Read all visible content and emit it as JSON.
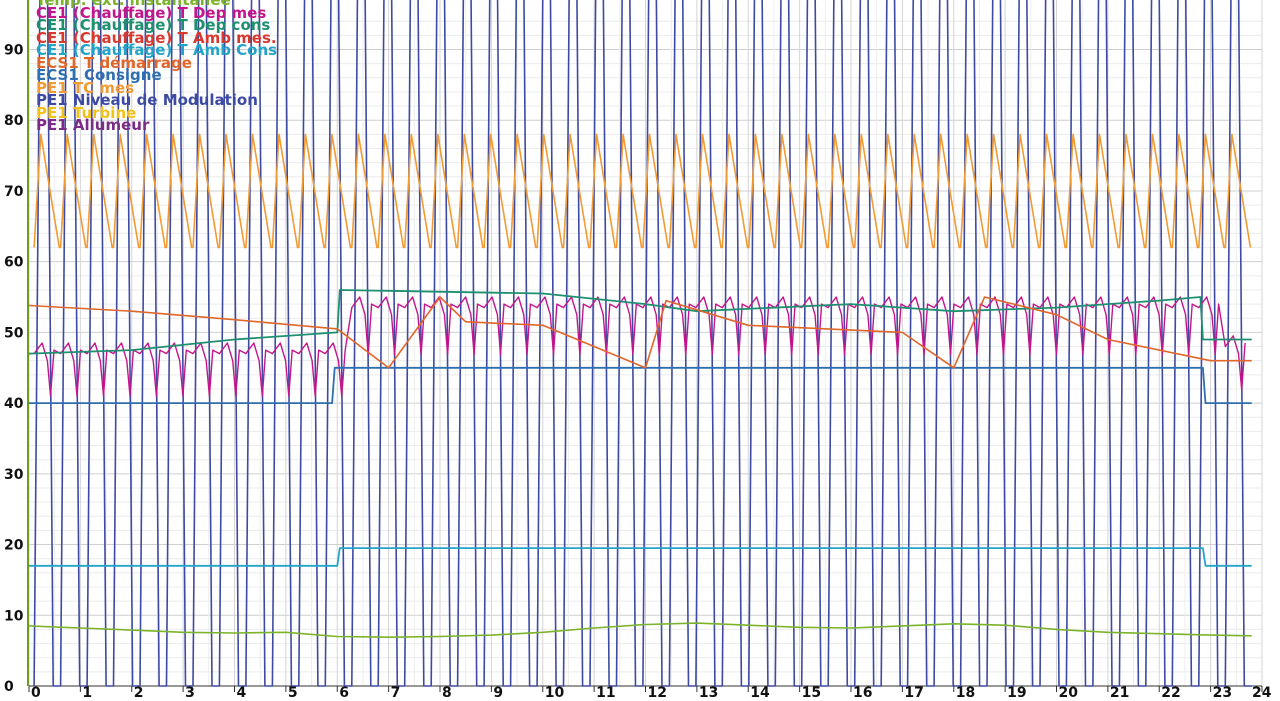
{
  "chart_data": {
    "type": "line",
    "title": "",
    "xlabel": "",
    "ylabel": "",
    "xlim": [
      0,
      24
    ],
    "ylim": [
      0,
      97
    ],
    "grid": true,
    "legend_position": "top-left",
    "x_ticks": [
      "0",
      "1",
      "2",
      "3",
      "4",
      "5",
      "6",
      "7",
      "8",
      "9",
      "10",
      "11",
      "12",
      "13",
      "14",
      "15",
      "16",
      "17",
      "18",
      "19",
      "20",
      "21",
      "22",
      "23",
      "24"
    ],
    "y_ticks": [
      "0",
      "10",
      "20",
      "30",
      "40",
      "50",
      "60",
      "70",
      "80",
      "90"
    ],
    "series": [
      {
        "name": "Temp. ext. instantanée",
        "color": "#7cb32b",
        "kind": "text_only"
      },
      {
        "name": "CE1 (Chauffage) T Dep mes",
        "color": "#c4168c",
        "kind": "dep_mes"
      },
      {
        "name": "CE1 (Chauffage) T Dep cons",
        "color": "#1e9070",
        "kind": "dep_cons"
      },
      {
        "name": "CE1 (Chauffage) T Amb mes.",
        "color": "#d8392e",
        "kind": "text_only"
      },
      {
        "name": "CE1 (Chauffage) T Amb Cons",
        "color": "#23a4c9",
        "kind": "amb_cons"
      },
      {
        "name": "ECS1 T démarrage",
        "color": "#e0662a",
        "kind": "ecs_dem"
      },
      {
        "name": "ECS1 Consigne",
        "color": "#2e6fb0",
        "kind": "ecs_cons"
      },
      {
        "name": "PE1 TC mes",
        "color": "#f29a33",
        "kind": "tc_mes"
      },
      {
        "name": "PE1 Niveau de Modulation",
        "color": "#3d4aa3",
        "kind": "modulation"
      },
      {
        "name": "PE1 Turbine",
        "color": "#f2c21b",
        "kind": "text_only"
      },
      {
        "name": "PE1 Allumeur",
        "color": "#7a2c86",
        "kind": "text_only"
      }
    ],
    "data": {
      "temp_ext": [
        [
          0,
          8.5
        ],
        [
          1,
          8.2
        ],
        [
          2,
          7.9
        ],
        [
          3,
          7.6
        ],
        [
          4,
          7.5
        ],
        [
          5,
          7.6
        ],
        [
          6,
          7.0
        ],
        [
          7,
          6.9
        ],
        [
          8,
          7.0
        ],
        [
          9,
          7.2
        ],
        [
          10,
          7.6
        ],
        [
          11,
          8.2
        ],
        [
          12,
          8.7
        ],
        [
          13,
          8.9
        ],
        [
          14,
          8.6
        ],
        [
          15,
          8.3
        ],
        [
          16,
          8.2
        ],
        [
          17,
          8.5
        ],
        [
          18,
          8.8
        ],
        [
          19,
          8.6
        ],
        [
          20,
          8.0
        ],
        [
          21,
          7.6
        ],
        [
          22,
          7.4
        ],
        [
          23,
          7.2
        ],
        [
          23.8,
          7.1
        ]
      ],
      "dep_cons": [
        [
          0,
          47
        ],
        [
          2,
          47.5
        ],
        [
          4,
          49
        ],
        [
          6,
          50
        ],
        [
          6.05,
          56
        ],
        [
          10,
          55.5
        ],
        [
          12,
          54
        ],
        [
          13,
          53
        ],
        [
          16,
          54
        ],
        [
          18,
          53
        ],
        [
          20,
          53.5
        ],
        [
          22,
          54.5
        ],
        [
          22.8,
          55
        ],
        [
          22.85,
          49
        ],
        [
          23.8,
          49
        ]
      ],
      "amb_cons": [
        [
          0,
          17
        ],
        [
          6,
          17
        ],
        [
          6.05,
          19.5
        ],
        [
          22.85,
          19.5
        ],
        [
          22.9,
          17
        ],
        [
          23.8,
          17
        ]
      ],
      "ecs_cons": [
        [
          0,
          40
        ],
        [
          5.9,
          40
        ],
        [
          5.95,
          45
        ],
        [
          22.85,
          45
        ],
        [
          22.9,
          40
        ],
        [
          23.8,
          40
        ]
      ],
      "ecs_dem": [
        [
          0,
          53.8
        ],
        [
          2,
          53
        ],
        [
          4,
          51.8
        ],
        [
          6,
          50.5
        ],
        [
          7,
          45
        ],
        [
          8,
          55
        ],
        [
          8.5,
          51.5
        ],
        [
          10,
          51
        ],
        [
          11,
          48
        ],
        [
          12,
          45
        ],
        [
          12.4,
          54.5
        ],
        [
          14,
          51
        ],
        [
          17,
          50
        ],
        [
          18,
          45
        ],
        [
          18.6,
          55
        ],
        [
          20,
          52.5
        ],
        [
          21,
          49
        ],
        [
          23,
          46
        ],
        [
          23.8,
          46
        ]
      ],
      "tc_mes": {
        "cycles": 46,
        "low": 62,
        "high": 78
      },
      "modulation": {
        "cycles": 46,
        "low": 0,
        "high": 100
      },
      "dep_mes": {
        "cycles": 46,
        "base_low": 47,
        "dips_to": 41
      }
    }
  }
}
